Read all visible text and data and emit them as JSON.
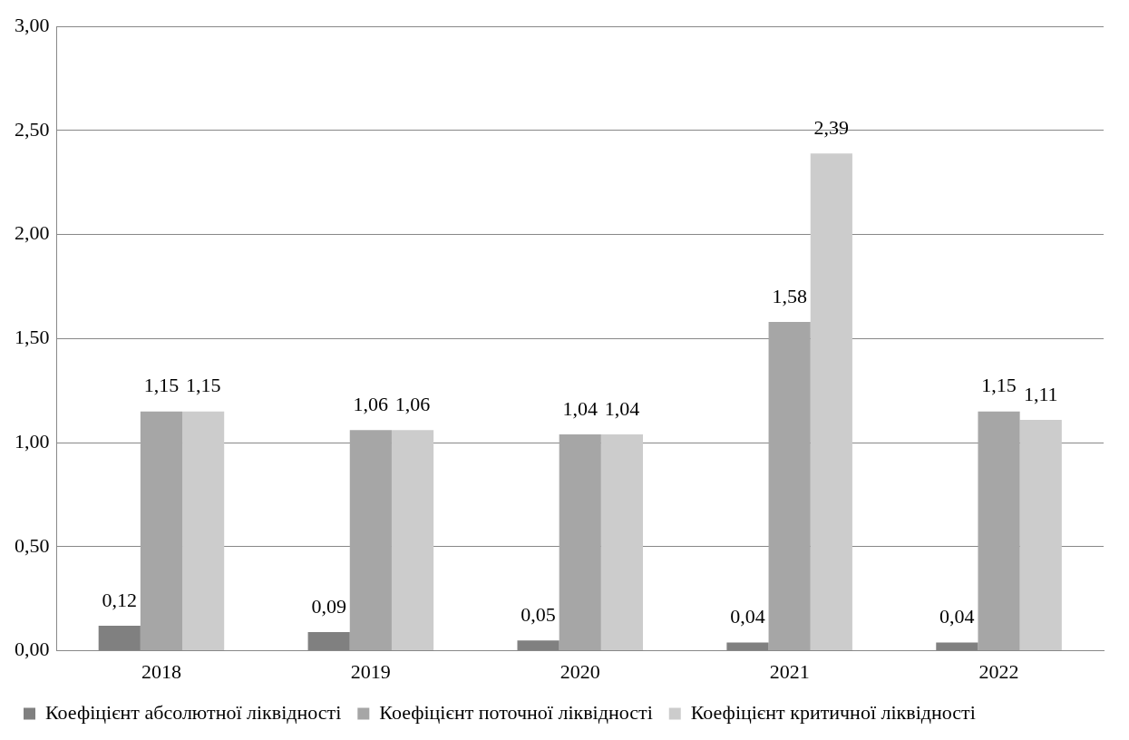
{
  "chart_data": {
    "type": "bar",
    "categories": [
      "2018",
      "2019",
      "2020",
      "2021",
      "2022"
    ],
    "series": [
      {
        "name": "Коефіцієнт абсолютної ліквідності",
        "color": "#808080",
        "values": [
          0.12,
          0.09,
          0.05,
          0.04,
          0.04
        ],
        "value_labels": [
          "0,12",
          "0,09",
          "0,05",
          "0,04",
          "0,04"
        ]
      },
      {
        "name": "Коефіцієнт поточної ліквідності",
        "color": "#a6a6a6",
        "values": [
          1.15,
          1.06,
          1.04,
          1.58,
          1.15
        ],
        "value_labels": [
          "1,15",
          "1,06",
          "1,04",
          "1,58",
          "1,15"
        ]
      },
      {
        "name": "Коефіцієнт критичної ліквідності",
        "color": "#cccccc",
        "values": [
          1.15,
          1.06,
          1.04,
          2.39,
          1.11
        ],
        "value_labels": [
          "1,15",
          "1,06",
          "1,04",
          "2,39",
          "1,11"
        ]
      }
    ],
    "ylim": [
      0,
      3
    ],
    "yticks": [
      {
        "value": 0,
        "label": "0,00"
      },
      {
        "value": 0.5,
        "label": "0,50"
      },
      {
        "value": 1,
        "label": "1,00"
      },
      {
        "value": 1.5,
        "label": "1,50"
      },
      {
        "value": 2,
        "label": "2,00"
      },
      {
        "value": 2.5,
        "label": "2,50"
      },
      {
        "value": 3,
        "label": "3,00"
      }
    ],
    "grid": "y",
    "legend": "bottom"
  }
}
